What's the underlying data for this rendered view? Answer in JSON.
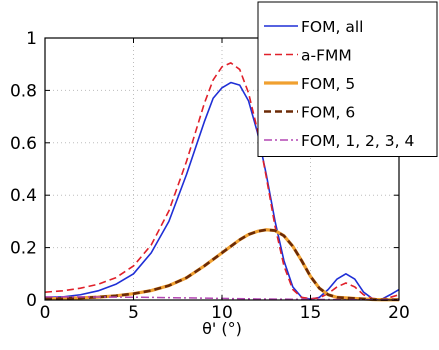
{
  "colors": {
    "fom_all": "#1f2fd6",
    "a_fmm": "#e0202a",
    "fom_5": "#f0a030",
    "fom_6": "#6b2a06",
    "fom_1234": "#b347b3",
    "grid": "#bdbdbd",
    "axis": "#000000"
  },
  "chart_data": {
    "type": "line",
    "title": "",
    "xlabel": "θ' (°)",
    "ylabel": "",
    "xlim": [
      0,
      20
    ],
    "ylim": [
      0,
      1
    ],
    "xticks": [
      0,
      5,
      10,
      15,
      20
    ],
    "yticks": [
      0,
      0.2,
      0.4,
      0.6,
      0.8,
      1
    ],
    "xtick_labels": [
      "0",
      "5",
      "10",
      "15",
      "20"
    ],
    "ytick_labels": [
      "0",
      "0.2",
      "0.4",
      "0.6",
      "0.8",
      "1"
    ],
    "grid": true,
    "legend_position": "top-right",
    "series": [
      {
        "name": "FOM, all",
        "color": "#1f2fd6",
        "style": "solid",
        "x": [
          0,
          1,
          2,
          3,
          4,
          5,
          6,
          7,
          8,
          8.5,
          9,
          9.5,
          10,
          10.5,
          11,
          11.5,
          12,
          12.5,
          13,
          13.5,
          14,
          14.5,
          15,
          15.5,
          16,
          16.5,
          17,
          17.5,
          18,
          18.5,
          19,
          19.5,
          20
        ],
        "y": [
          0.01,
          0.012,
          0.02,
          0.035,
          0.06,
          0.1,
          0.18,
          0.3,
          0.48,
          0.58,
          0.68,
          0.77,
          0.81,
          0.83,
          0.82,
          0.76,
          0.64,
          0.48,
          0.3,
          0.15,
          0.05,
          0.01,
          0.003,
          0.01,
          0.04,
          0.08,
          0.1,
          0.08,
          0.03,
          0.005,
          0.002,
          0.02,
          0.04
        ]
      },
      {
        "name": "a-FMM",
        "color": "#e0202a",
        "style": "dashed",
        "x": [
          0,
          1,
          2,
          3,
          4,
          5,
          6,
          7,
          8,
          8.5,
          9,
          9.5,
          10,
          10.5,
          11,
          11.5,
          12,
          12.5,
          13,
          13.5,
          14,
          14.5,
          15,
          15.5,
          16,
          16.5,
          17,
          17.5,
          18,
          18.5,
          19,
          19.5,
          20
        ],
        "y": [
          0.03,
          0.035,
          0.045,
          0.06,
          0.085,
          0.13,
          0.21,
          0.34,
          0.53,
          0.64,
          0.75,
          0.84,
          0.89,
          0.905,
          0.88,
          0.79,
          0.65,
          0.47,
          0.28,
          0.13,
          0.04,
          0.01,
          0.005,
          0.008,
          0.025,
          0.05,
          0.065,
          0.05,
          0.02,
          0.006,
          0.003,
          0.01,
          0.02
        ]
      },
      {
        "name": "FOM, 5",
        "color": "#f0a030",
        "style": "solid-thick",
        "x": [
          0,
          1,
          2,
          3,
          4,
          5,
          6,
          7,
          8,
          9,
          10,
          10.5,
          11,
          11.5,
          12,
          12.5,
          13,
          13.5,
          14,
          14.5,
          15,
          15.5,
          16,
          16.5,
          17,
          17.5,
          18,
          18.5,
          19,
          20
        ],
        "y": [
          0.005,
          0.006,
          0.008,
          0.011,
          0.016,
          0.024,
          0.036,
          0.055,
          0.085,
          0.13,
          0.18,
          0.205,
          0.23,
          0.25,
          0.262,
          0.268,
          0.265,
          0.245,
          0.205,
          0.15,
          0.09,
          0.045,
          0.02,
          0.01,
          0.008,
          0.006,
          0.004,
          0.002,
          0.001,
          0.001
        ]
      },
      {
        "name": "FOM, 6",
        "color": "#6b2a06",
        "style": "dashed-thick",
        "x": [
          0,
          1,
          2,
          3,
          4,
          5,
          6,
          7,
          8,
          9,
          10,
          10.5,
          11,
          11.5,
          12,
          12.5,
          13,
          13.5,
          14,
          14.5,
          15,
          15.5,
          16,
          16.5,
          17,
          17.5,
          18,
          18.5,
          19,
          20
        ],
        "y": [
          0.005,
          0.006,
          0.008,
          0.011,
          0.016,
          0.024,
          0.036,
          0.055,
          0.085,
          0.13,
          0.18,
          0.205,
          0.23,
          0.25,
          0.262,
          0.268,
          0.265,
          0.245,
          0.205,
          0.15,
          0.09,
          0.045,
          0.02,
          0.01,
          0.008,
          0.006,
          0.004,
          0.002,
          0.001,
          0.001
        ]
      },
      {
        "name": "FOM, 1, 2, 3, 4",
        "color": "#b347b3",
        "style": "dashdot",
        "x": [
          0,
          2,
          4,
          6,
          8,
          10,
          12,
          14,
          16,
          18,
          20
        ],
        "y": [
          0.012,
          0.012,
          0.011,
          0.01,
          0.008,
          0.006,
          0.004,
          0.003,
          0.002,
          0.001,
          0.001
        ]
      }
    ]
  }
}
